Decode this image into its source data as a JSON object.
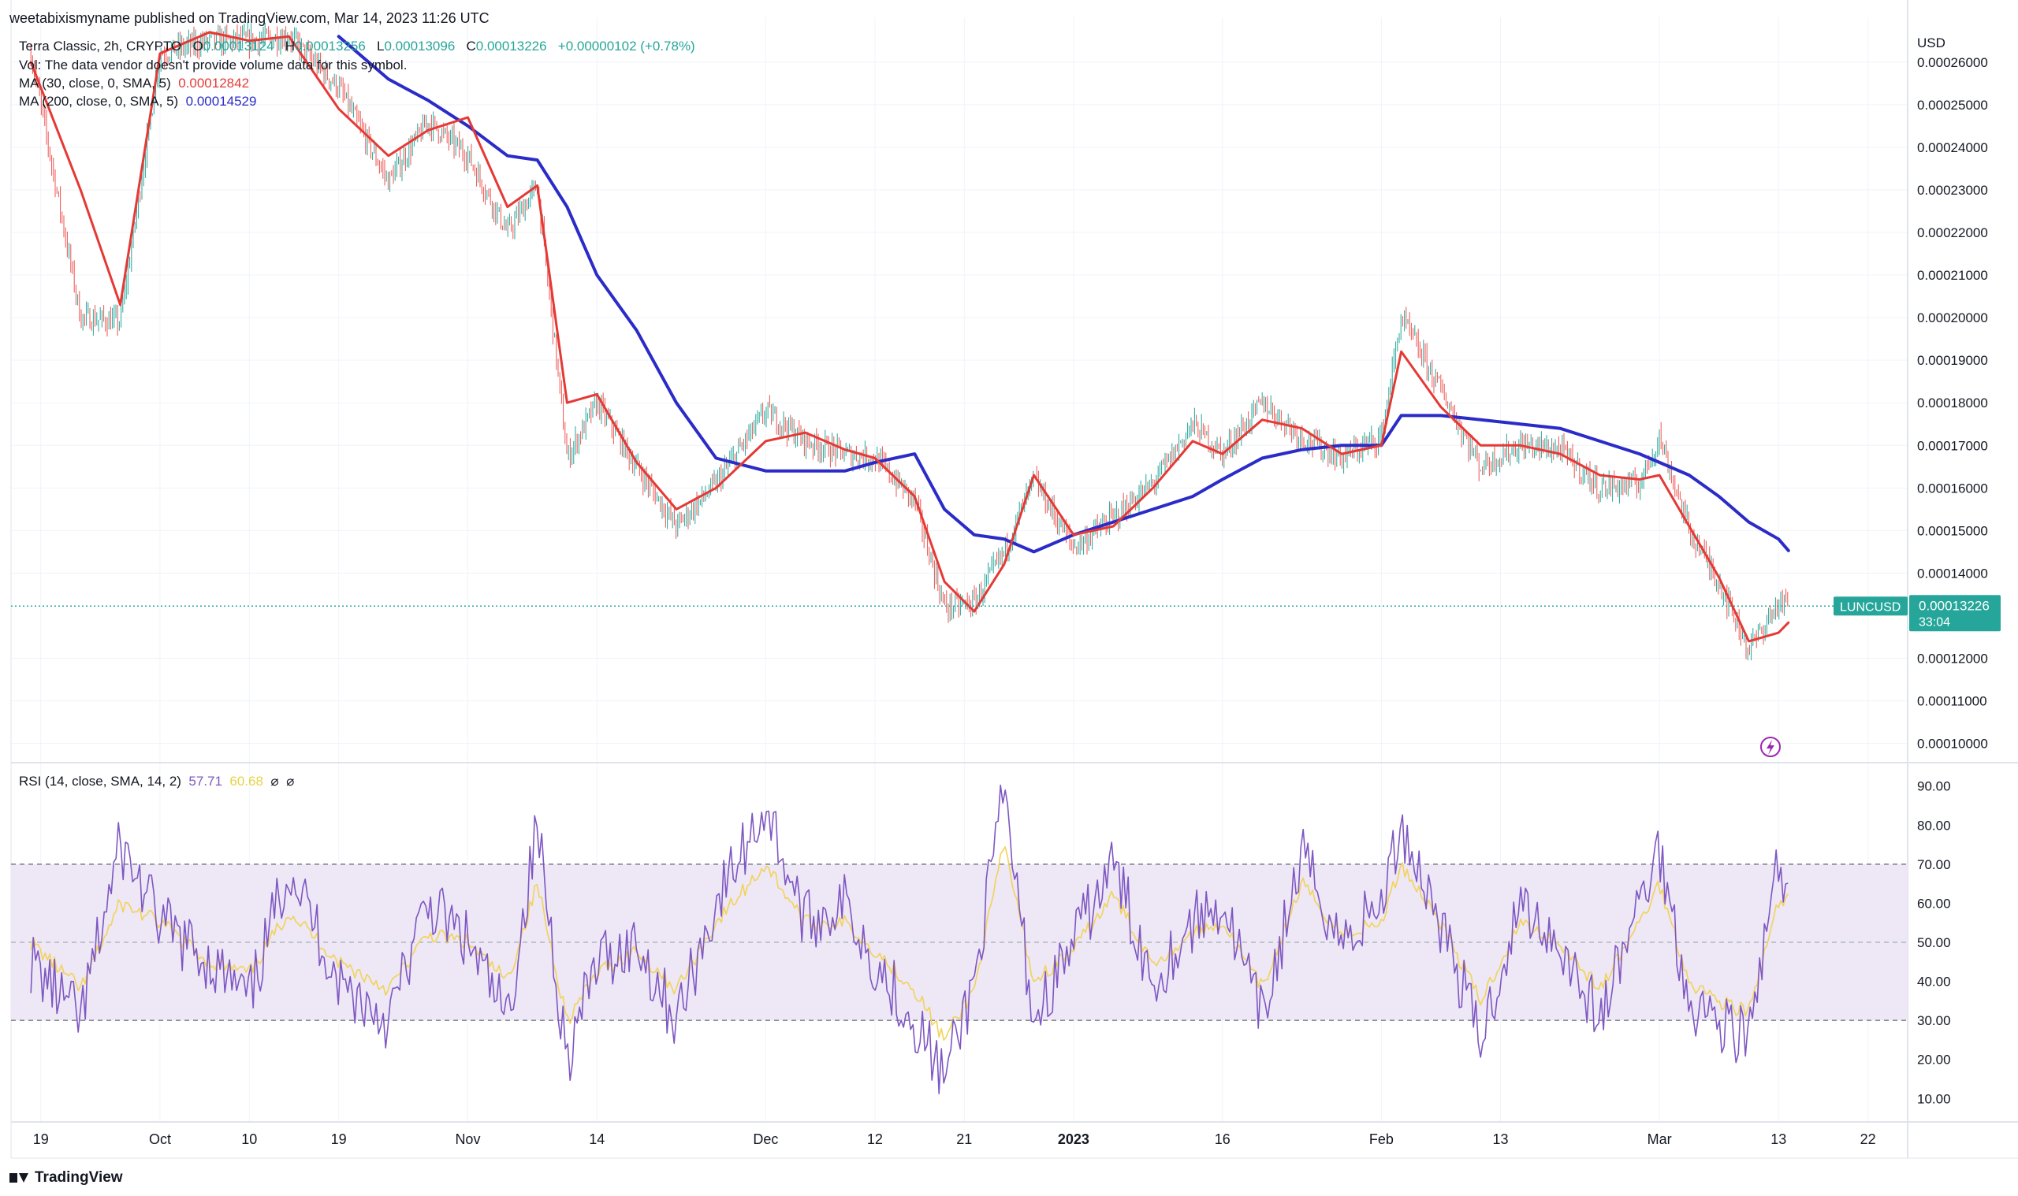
{
  "header": {
    "published": "weetabixismyname published on TradingView.com, Mar 14, 2023 11:26 UTC"
  },
  "legend": {
    "symbol": "Terra Classic, 2h, CRYPTO",
    "o_label": "O",
    "o_value": "0.00013124",
    "h_label": "H",
    "h_value": "0.00013256",
    "l_label": "L",
    "l_value": "0.00013096",
    "c_label": "C",
    "c_value": "0.00013226",
    "change": "+0.00000102 (+0.78%)",
    "vol": "Vol: The data vendor doesn't provide volume data for this symbol.",
    "ma30_label": "MA (30, close, 0, SMA, 5)",
    "ma30_value": "0.00012842",
    "ma200_label": "MA (200, close, 0, SMA, 5)",
    "ma200_value": "0.00014529",
    "rsi_label": "RSI (14, close, SMA, 14, 2)",
    "rsi_value": "57.71",
    "rsi_ma_value": "60.68",
    "rsi_extra": "⌀  ⌀"
  },
  "colors": {
    "up": "#26a69a",
    "down": "#ef5350",
    "ma30": "#e53935",
    "ma200": "#2b2bc8",
    "rsi": "#7e57c2",
    "rsi_ma": "#f2d357",
    "rsi_band": "#ede7f6",
    "last_price_bg": "#26a69a"
  },
  "price_scale": {
    "currency": "USD",
    "ticks": [
      "0.00026000",
      "0.00025000",
      "0.00024000",
      "0.00023000",
      "0.00022000",
      "0.00021000",
      "0.00020000",
      "0.00019000",
      "0.00018000",
      "0.00017000",
      "0.00016000",
      "0.00015000",
      "0.00014000",
      "0.00012000",
      "0.00011000",
      "0.00010000"
    ]
  },
  "last_price": {
    "symbol_tag": "LUNCUSD",
    "price": "0.00013226",
    "countdown": "33:04"
  },
  "rsi_scale": {
    "ticks": [
      "90.00",
      "80.00",
      "70.00",
      "60.00",
      "50.00",
      "40.00",
      "30.00",
      "20.00",
      "10.00"
    ]
  },
  "time_axis": {
    "labels": [
      {
        "text": "19",
        "bold": false
      },
      {
        "text": "Oct",
        "bold": false
      },
      {
        "text": "10",
        "bold": false
      },
      {
        "text": "19",
        "bold": false
      },
      {
        "text": "Nov",
        "bold": false
      },
      {
        "text": "14",
        "bold": false
      },
      {
        "text": "Dec",
        "bold": false
      },
      {
        "text": "12",
        "bold": false
      },
      {
        "text": "21",
        "bold": false
      },
      {
        "text": "2023",
        "bold": true
      },
      {
        "text": "16",
        "bold": false
      },
      {
        "text": "Feb",
        "bold": false
      },
      {
        "text": "13",
        "bold": false
      },
      {
        "text": "Mar",
        "bold": false
      },
      {
        "text": "13",
        "bold": false
      },
      {
        "text": "22",
        "bold": false
      }
    ]
  },
  "footer": {
    "brand": "TradingView"
  },
  "chart_data": [
    {
      "type": "line",
      "title": "Terra Classic, 2h, CRYPTO",
      "ylabel": "USD",
      "ylim": [
        9.55e-05,
        0.0002705
      ],
      "x_dates": [
        "2022-09-18",
        "2022-09-23",
        "2022-09-27",
        "2022-10-01",
        "2022-10-06",
        "2022-10-10",
        "2022-10-14",
        "2022-10-19",
        "2022-10-24",
        "2022-10-28",
        "2022-11-01",
        "2022-11-05",
        "2022-11-08",
        "2022-11-11",
        "2022-11-14",
        "2022-11-18",
        "2022-11-22",
        "2022-11-26",
        "2022-12-01",
        "2022-12-05",
        "2022-12-09",
        "2022-12-12",
        "2022-12-16",
        "2022-12-19",
        "2022-12-22",
        "2022-12-25",
        "2022-12-28",
        "2023-01-01",
        "2023-01-05",
        "2023-01-09",
        "2023-01-13",
        "2023-01-16",
        "2023-01-20",
        "2023-01-24",
        "2023-01-28",
        "2023-02-01",
        "2023-02-03",
        "2023-02-07",
        "2023-02-11",
        "2023-02-15",
        "2023-02-19",
        "2023-02-23",
        "2023-02-27",
        "2023-03-01",
        "2023-03-04",
        "2023-03-07",
        "2023-03-10",
        "2023-03-13",
        "2023-03-14"
      ],
      "series": [
        {
          "name": "Terra Classic",
          "values": [
            0.000262,
            0.0002,
            0.000199,
            0.000262,
            0.000265,
            0.000265,
            0.000266,
            0.000254,
            0.000232,
            0.000246,
            0.000238,
            0.00022,
            0.000231,
            0.000167,
            0.00018,
            0.000165,
            0.000151,
            0.000161,
            0.000178,
            0.000171,
            0.000168,
            0.000167,
            0.000157,
            0.000132,
            0.000133,
            0.000145,
            0.000162,
            0.000146,
            0.000153,
            0.000161,
            0.000175,
            0.000168,
            0.00018,
            0.000172,
            0.000167,
            0.000172,
            0.0002,
            0.000183,
            0.000165,
            0.00017,
            0.000169,
            0.00016,
            0.000161,
            0.000172,
            0.00015,
            0.000138,
            0.000122,
            0.000133,
            0.0001323
          ]
        },
        {
          "name": "MA (30, close, 0, SMA, 5)",
          "values": [
            0.00026,
            0.00023,
            0.000203,
            0.000262,
            0.000267,
            0.000265,
            0.000266,
            0.000249,
            0.000238,
            0.000244,
            0.000247,
            0.000226,
            0.000231,
            0.00018,
            0.000182,
            0.000166,
            0.000155,
            0.00016,
            0.000171,
            0.000173,
            0.000169,
            0.000167,
            0.000158,
            0.000138,
            0.000131,
            0.000142,
            0.000163,
            0.000149,
            0.000151,
            0.00016,
            0.000171,
            0.000168,
            0.000176,
            0.000174,
            0.000168,
            0.00017,
            0.000192,
            0.000179,
            0.00017,
            0.00017,
            0.000168,
            0.000163,
            0.000162,
            0.000163,
            0.000151,
            0.000139,
            0.000124,
            0.000126,
            0.0001284
          ]
        },
        {
          "name": "MA (200, close, 0, SMA, 5)",
          "values": [
            null,
            null,
            null,
            null,
            null,
            null,
            null,
            0.000266,
            0.000256,
            0.000251,
            0.000245,
            0.000238,
            0.000237,
            0.000226,
            0.00021,
            0.000197,
            0.00018,
            0.000167,
            0.000164,
            0.000164,
            0.000164,
            0.000166,
            0.000168,
            0.000155,
            0.000149,
            0.000148,
            0.000145,
            0.000149,
            0.000152,
            0.000155,
            0.000158,
            0.000162,
            0.000167,
            0.000169,
            0.00017,
            0.00017,
            0.000177,
            0.000177,
            0.000176,
            0.000175,
            0.000174,
            0.000171,
            0.000168,
            0.000166,
            0.000163,
            0.000158,
            0.000152,
            0.000148,
            0.0001453
          ]
        }
      ]
    },
    {
      "type": "line",
      "title": "RSI (14, close, SMA, 14, 2)",
      "ylim": [
        4,
        96
      ],
      "x_dates": [
        "2022-09-18",
        "2022-09-23",
        "2022-09-27",
        "2022-10-01",
        "2022-10-06",
        "2022-10-10",
        "2022-10-14",
        "2022-10-19",
        "2022-10-24",
        "2022-10-28",
        "2022-11-01",
        "2022-11-05",
        "2022-11-08",
        "2022-11-11",
        "2022-11-14",
        "2022-11-18",
        "2022-11-22",
        "2022-11-26",
        "2022-12-01",
        "2022-12-05",
        "2022-12-09",
        "2022-12-12",
        "2022-12-16",
        "2022-12-19",
        "2022-12-22",
        "2022-12-25",
        "2022-12-28",
        "2023-01-01",
        "2023-01-05",
        "2023-01-09",
        "2023-01-13",
        "2023-01-16",
        "2023-01-20",
        "2023-01-24",
        "2023-01-28",
        "2023-02-01",
        "2023-02-03",
        "2023-02-07",
        "2023-02-11",
        "2023-02-15",
        "2023-02-19",
        "2023-02-23",
        "2023-02-27",
        "2023-03-01",
        "2023-03-04",
        "2023-03-07",
        "2023-03-10",
        "2023-03-13",
        "2023-03-14"
      ],
      "bands": {
        "upper": 70,
        "middle": 50,
        "lower": 30
      },
      "series": [
        {
          "name": "RSI",
          "values": [
            45,
            30,
            75,
            55,
            45,
            35,
            70,
            40,
            30,
            60,
            50,
            30,
            80,
            20,
            45,
            50,
            30,
            60,
            85,
            55,
            60,
            45,
            30,
            15,
            40,
            88,
            30,
            50,
            70,
            40,
            55,
            60,
            30,
            72,
            50,
            60,
            80,
            55,
            25,
            60,
            50,
            30,
            60,
            74,
            35,
            30,
            25,
            70,
            57.71
          ]
        },
        {
          "name": "RSI MA",
          "values": [
            50,
            38,
            60,
            55,
            45,
            42,
            58,
            45,
            38,
            52,
            50,
            40,
            65,
            30,
            42,
            48,
            38,
            55,
            70,
            55,
            55,
            48,
            38,
            25,
            38,
            75,
            40,
            48,
            62,
            45,
            52,
            55,
            38,
            65,
            52,
            55,
            70,
            55,
            35,
            55,
            50,
            38,
            55,
            65,
            40,
            35,
            32,
            60,
            60.68
          ]
        }
      ]
    }
  ]
}
